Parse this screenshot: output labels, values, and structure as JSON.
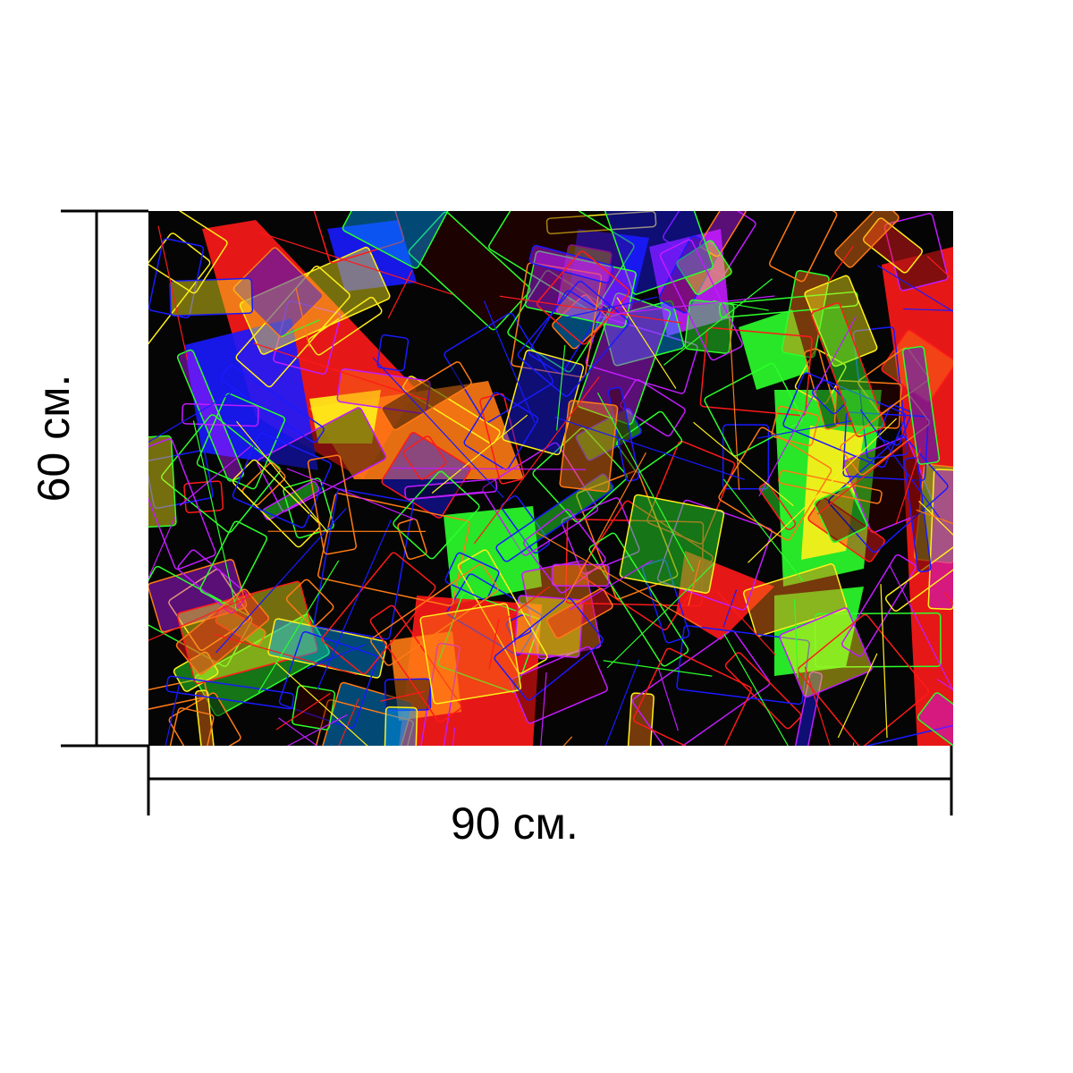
{
  "dimensions": {
    "width_label": "90 см.",
    "height_label": "60 см."
  },
  "artwork": {
    "palette": [
      "#ff1a1a",
      "#1a1aff",
      "#2cff2c",
      "#ffef1a",
      "#ff7a14",
      "#c21cff",
      "#050505",
      "#3c0000",
      "#00a0ff"
    ]
  }
}
